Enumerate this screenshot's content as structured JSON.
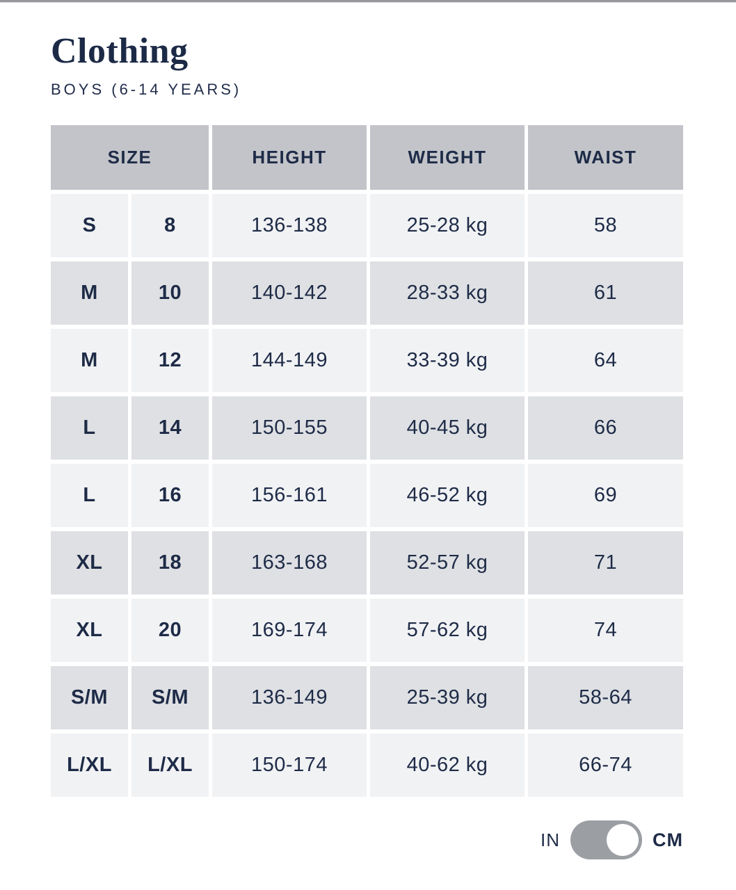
{
  "page": {
    "title": "Clothing",
    "subtitle": "BOYS (6-14 YEARS)"
  },
  "table": {
    "headers": [
      "SIZE",
      "HEIGHT",
      "WEIGHT",
      "WAIST"
    ],
    "rows": [
      {
        "size_letter": "S",
        "size_number": "8",
        "height": "136-138",
        "weight": "25-28 kg",
        "waist": "58"
      },
      {
        "size_letter": "M",
        "size_number": "10",
        "height": "140-142",
        "weight": "28-33 kg",
        "waist": "61"
      },
      {
        "size_letter": "M",
        "size_number": "12",
        "height": "144-149",
        "weight": "33-39 kg",
        "waist": "64"
      },
      {
        "size_letter": "L",
        "size_number": "14",
        "height": "150-155",
        "weight": "40-45 kg",
        "waist": "66"
      },
      {
        "size_letter": "L",
        "size_number": "16",
        "height": "156-161",
        "weight": "46-52 kg",
        "waist": "69"
      },
      {
        "size_letter": "XL",
        "size_number": "18",
        "height": "163-168",
        "weight": "52-57 kg",
        "waist": "71"
      },
      {
        "size_letter": "XL",
        "size_number": "20",
        "height": "169-174",
        "weight": "57-62 kg",
        "waist": "74"
      },
      {
        "size_letter": "S/M",
        "size_number": "S/M",
        "height": "136-149",
        "weight": "25-39 kg",
        "waist": "58-64"
      },
      {
        "size_letter": "L/XL",
        "size_number": "L/XL",
        "height": "150-174",
        "weight": "40-62 kg",
        "waist": "66-74"
      }
    ]
  },
  "unit_toggle": {
    "left_label": "IN",
    "right_label": "CM",
    "selected": "CM"
  },
  "colors": {
    "text_navy": "#1e2b47",
    "header_bg": "#c2c4c9",
    "row_light_bg": "#f1f2f4",
    "row_dark_bg": "#dee0e3",
    "toggle_gray": "#9b9ea3",
    "top_line": "#96979b"
  }
}
